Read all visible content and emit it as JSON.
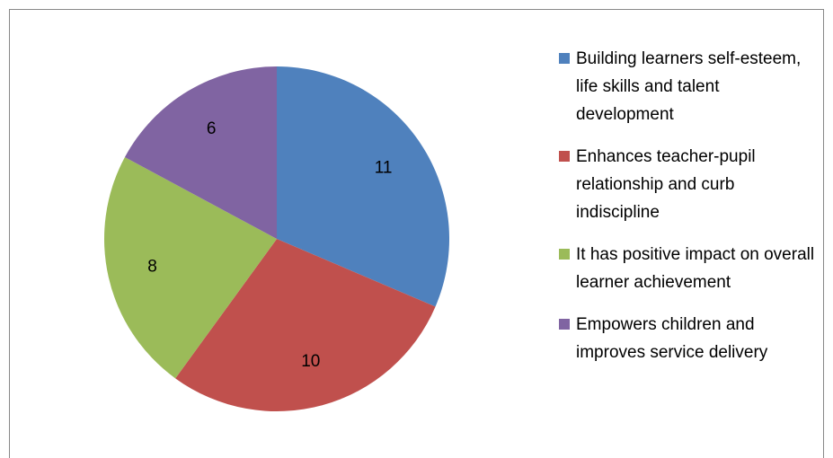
{
  "chart_data": {
    "type": "pie",
    "categories": [
      "Building learners self-esteem, life skills and talent development",
      "Enhances teacher-pupil relationship and curb indiscipline",
      "It has positive impact on overall learner achievement",
      "Empowers children and improves service delivery"
    ],
    "values": [
      11,
      10,
      8,
      6
    ],
    "colors": [
      "#4f81bd",
      "#c0504d",
      "#9bbb59",
      "#8064a2"
    ],
    "legend": "right"
  }
}
